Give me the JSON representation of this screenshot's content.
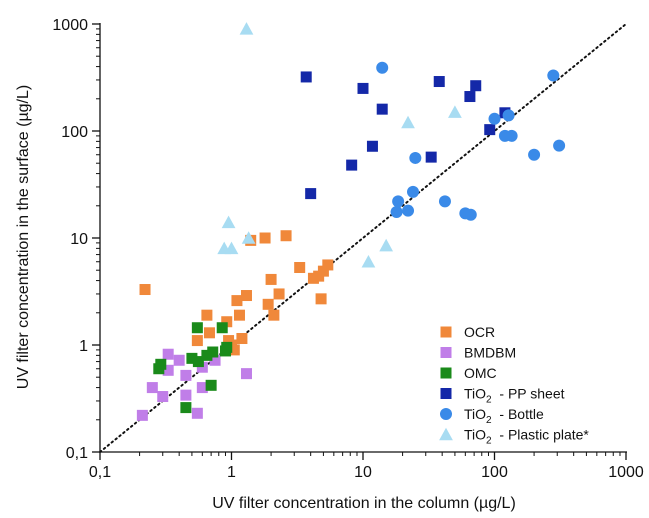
{
  "chart_data": {
    "type": "scatter",
    "xlabel": "UV filter concentration in the column (µg/L)",
    "ylabel": "UV filter concentration in the surface (µg/L)",
    "xscale": "log",
    "yscale": "log",
    "xlim": [
      0.1,
      1000
    ],
    "ylim": [
      0.1,
      1000
    ],
    "xticks": [
      0.1,
      1,
      10,
      100,
      1000
    ],
    "yticks": [
      0.1,
      1,
      10,
      100,
      1000
    ],
    "xtick_labels": [
      "0,1",
      "1",
      "10",
      "100",
      "1000"
    ],
    "ytick_labels": [
      "0,1",
      "1",
      "10",
      "100",
      "1000"
    ],
    "grid": false,
    "reference_line": "y = x (dotted)",
    "legend_position": "bottom-right",
    "series": [
      {
        "name": "OCR",
        "name_parts": [
          "OCR"
        ],
        "marker": "square",
        "color": "#F0883A",
        "points": [
          [
            0.22,
            3.3
          ],
          [
            0.55,
            1.1
          ],
          [
            0.65,
            1.9
          ],
          [
            0.68,
            1.3
          ],
          [
            0.92,
            1.65
          ],
          [
            0.95,
            1.1
          ],
          [
            1.0,
            1.0
          ],
          [
            1.05,
            0.9
          ],
          [
            1.1,
            2.6
          ],
          [
            1.15,
            1.9
          ],
          [
            1.2,
            1.15
          ],
          [
            1.3,
            2.9
          ],
          [
            1.4,
            9.5
          ],
          [
            1.8,
            10.0
          ],
          [
            1.9,
            2.4
          ],
          [
            2.0,
            4.1
          ],
          [
            2.1,
            1.9
          ],
          [
            2.3,
            3.0
          ],
          [
            2.6,
            10.5
          ],
          [
            3.3,
            5.3
          ],
          [
            4.2,
            4.2
          ],
          [
            4.6,
            4.4
          ],
          [
            4.8,
            2.7
          ],
          [
            5.0,
            4.9
          ],
          [
            5.4,
            5.6
          ]
        ]
      },
      {
        "name": "BMDBM",
        "name_parts": [
          "BMDBM"
        ],
        "marker": "square",
        "color": "#C07EE8",
        "points": [
          [
            0.21,
            0.22
          ],
          [
            0.25,
            0.4
          ],
          [
            0.3,
            0.33
          ],
          [
            0.33,
            0.58
          ],
          [
            0.33,
            0.82
          ],
          [
            0.4,
            0.72
          ],
          [
            0.45,
            0.34
          ],
          [
            0.45,
            0.52
          ],
          [
            0.55,
            0.23
          ],
          [
            0.6,
            0.4
          ],
          [
            0.6,
            0.62
          ],
          [
            0.75,
            0.72
          ],
          [
            1.3,
            0.54
          ]
        ]
      },
      {
        "name": "OMC",
        "name_parts": [
          "OMC"
        ],
        "marker": "square",
        "color": "#1A8A1A",
        "points": [
          [
            0.28,
            0.6
          ],
          [
            0.29,
            0.66
          ],
          [
            0.45,
            0.26
          ],
          [
            0.5,
            0.75
          ],
          [
            0.55,
            1.45
          ],
          [
            0.56,
            0.7
          ],
          [
            0.65,
            0.8
          ],
          [
            0.7,
            0.42
          ],
          [
            0.72,
            0.86
          ],
          [
            0.85,
            1.45
          ],
          [
            0.9,
            0.88
          ],
          [
            0.92,
            0.95
          ]
        ]
      },
      {
        "name": "TiO2 - PP sheet",
        "name_parts": [
          "TiO",
          "2",
          " - PP sheet"
        ],
        "marker": "square",
        "color": "#1428A8",
        "points": [
          [
            3.7,
            320
          ],
          [
            4.0,
            26
          ],
          [
            8.2,
            48
          ],
          [
            10.0,
            250
          ],
          [
            11.8,
            72
          ],
          [
            14.0,
            160
          ],
          [
            33.0,
            57
          ],
          [
            38.0,
            290
          ],
          [
            65.0,
            210
          ],
          [
            72.0,
            265
          ],
          [
            92.0,
            103
          ],
          [
            120.0,
            148
          ]
        ]
      },
      {
        "name": "TiO2 - Bottle",
        "name_parts": [
          "TiO",
          "2",
          " - Bottle"
        ],
        "marker": "circle",
        "color": "#3A8AE8",
        "points": [
          [
            14.0,
            390
          ],
          [
            18.0,
            17.5
          ],
          [
            18.5,
            22.0
          ],
          [
            22.0,
            18.0
          ],
          [
            24.0,
            27.0
          ],
          [
            25.0,
            56.0
          ],
          [
            42.0,
            22.0
          ],
          [
            60.0,
            17.0
          ],
          [
            66.0,
            16.5
          ],
          [
            100.0,
            130.0
          ],
          [
            120.0,
            90.0
          ],
          [
            128.0,
            140.0
          ],
          [
            135.0,
            90.0
          ],
          [
            200.0,
            60.0
          ],
          [
            280.0,
            330.0
          ],
          [
            310.0,
            73.0
          ]
        ]
      },
      {
        "name": "TiO2 - Plastic plate*",
        "name_parts": [
          "TiO",
          "2",
          " - Plastic plate*"
        ],
        "marker": "triangle",
        "color": "#A8DCF2",
        "points": [
          [
            1.3,
            900
          ],
          [
            0.88,
            8.0
          ],
          [
            0.95,
            14.0
          ],
          [
            1.0,
            8.0
          ],
          [
            1.35,
            10.0
          ],
          [
            11.0,
            6.0
          ],
          [
            15.0,
            8.5
          ],
          [
            22.0,
            120.0
          ],
          [
            50.0,
            150.0
          ]
        ]
      }
    ]
  }
}
